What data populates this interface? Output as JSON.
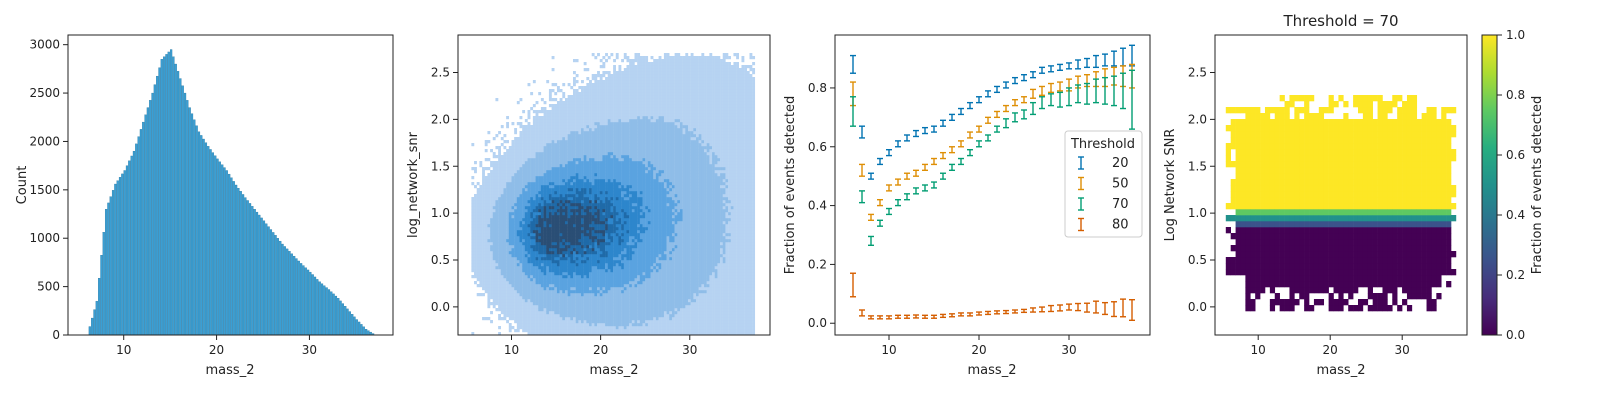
{
  "chart_data": [
    {
      "type": "bar",
      "title": "",
      "xlabel": "mass_2",
      "ylabel": "Count",
      "xlim": [
        4,
        39
      ],
      "ylim": [
        0,
        3100
      ],
      "xticks": [
        "10",
        "20",
        "30"
      ],
      "yticks": [
        "0",
        "500",
        "1000",
        "1500",
        "2000",
        "2500",
        "3000"
      ],
      "bar_color": "#3a9fd4",
      "x": [
        5.0,
        6.0,
        7.0,
        8.0,
        9.0,
        10.0,
        11.0,
        12.0,
        13.0,
        14.0,
        15.0,
        16.0,
        17.0,
        18.0,
        19.0,
        20.0,
        21.0,
        22.0,
        23.0,
        24.0,
        25.0,
        26.0,
        27.0,
        28.0,
        29.0,
        30.0,
        31.0,
        32.0,
        33.0,
        34.0,
        35.0,
        36.0,
        37.0,
        38.0
      ],
      "values": [
        0,
        0,
        350,
        1300,
        1560,
        1700,
        1900,
        2200,
        2500,
        2850,
        2950,
        2650,
        2350,
        2100,
        1950,
        1820,
        1700,
        1550,
        1420,
        1300,
        1180,
        1060,
        940,
        840,
        740,
        650,
        550,
        470,
        380,
        270,
        160,
        60,
        0,
        0
      ]
    },
    {
      "type": "heatmap",
      "title": "",
      "xlabel": "mass_2",
      "ylabel": "log_network_snr",
      "xlim": [
        4,
        39
      ],
      "ylim": [
        -0.3,
        2.9
      ],
      "xticks": [
        "10",
        "20",
        "30"
      ],
      "yticks": [
        "0.0",
        "0.5",
        "1.0",
        "1.5",
        "2.0",
        "2.5"
      ],
      "cmap": "blues",
      "peak": {
        "x": 14.5,
        "y": 0.82
      }
    },
    {
      "type": "scatter",
      "title": "",
      "xlabel": "mass_2",
      "ylabel": "Fraction of events detected",
      "xlim": [
        4,
        39
      ],
      "ylim": [
        -0.04,
        0.98
      ],
      "xticks": [
        "10",
        "20",
        "30"
      ],
      "yticks": [
        "0.0",
        "0.2",
        "0.4",
        "0.6",
        "0.8"
      ],
      "legend": {
        "title": "Threshold",
        "placement": "center-right"
      },
      "x": [
        6,
        7,
        8,
        9,
        10,
        11,
        12,
        13,
        14,
        15,
        16,
        17,
        18,
        19,
        20,
        21,
        22,
        23,
        24,
        25,
        26,
        27,
        28,
        29,
        30,
        31,
        32,
        33,
        34,
        35,
        36,
        37
      ],
      "series": [
        {
          "name": "20",
          "color": "#0173b2",
          "values": [
            0.88,
            0.65,
            0.5,
            0.55,
            0.58,
            0.61,
            0.63,
            0.645,
            0.655,
            0.66,
            0.68,
            0.7,
            0.72,
            0.74,
            0.76,
            0.78,
            0.795,
            0.81,
            0.825,
            0.835,
            0.845,
            0.86,
            0.865,
            0.87,
            0.875,
            0.88,
            0.885,
            0.89,
            0.895,
            0.9,
            0.905,
            0.91
          ],
          "err": [
            0.03,
            0.02,
            0.01,
            0.01,
            0.01,
            0.01,
            0.01,
            0.01,
            0.01,
            0.01,
            0.01,
            0.01,
            0.01,
            0.01,
            0.01,
            0.01,
            0.01,
            0.01,
            0.01,
            0.01,
            0.01,
            0.01,
            0.01,
            0.01,
            0.01,
            0.015,
            0.015,
            0.02,
            0.02,
            0.025,
            0.03,
            0.035
          ]
        },
        {
          "name": "50",
          "color": "#de8f05",
          "values": [
            0.78,
            0.52,
            0.36,
            0.41,
            0.46,
            0.48,
            0.5,
            0.51,
            0.53,
            0.55,
            0.57,
            0.59,
            0.61,
            0.64,
            0.66,
            0.69,
            0.71,
            0.73,
            0.75,
            0.76,
            0.78,
            0.79,
            0.8,
            0.805,
            0.81,
            0.82,
            0.825,
            0.83,
            0.835,
            0.84,
            0.84,
            0.84
          ],
          "err": [
            0.04,
            0.02,
            0.01,
            0.01,
            0.01,
            0.01,
            0.01,
            0.01,
            0.01,
            0.01,
            0.01,
            0.01,
            0.01,
            0.01,
            0.01,
            0.01,
            0.01,
            0.01,
            0.01,
            0.01,
            0.015,
            0.015,
            0.015,
            0.015,
            0.02,
            0.02,
            0.02,
            0.025,
            0.03,
            0.03,
            0.035,
            0.04
          ]
        },
        {
          "name": "70",
          "color": "#029e73",
          "values": [
            0.72,
            0.43,
            0.28,
            0.34,
            0.38,
            0.41,
            0.43,
            0.45,
            0.46,
            0.47,
            0.5,
            0.53,
            0.55,
            0.58,
            0.61,
            0.63,
            0.66,
            0.68,
            0.7,
            0.71,
            0.73,
            0.75,
            0.76,
            0.76,
            0.77,
            0.78,
            0.78,
            0.79,
            0.79,
            0.79,
            0.79,
            0.76
          ],
          "err": [
            0.05,
            0.02,
            0.015,
            0.01,
            0.01,
            0.01,
            0.01,
            0.01,
            0.01,
            0.01,
            0.01,
            0.01,
            0.01,
            0.01,
            0.01,
            0.01,
            0.01,
            0.015,
            0.015,
            0.015,
            0.02,
            0.02,
            0.02,
            0.025,
            0.03,
            0.03,
            0.035,
            0.04,
            0.045,
            0.05,
            0.06,
            0.1
          ]
        },
        {
          "name": "80",
          "color": "#d55e00",
          "values": [
            0.13,
            0.035,
            0.02,
            0.02,
            0.02,
            0.022,
            0.022,
            0.023,
            0.022,
            0.022,
            0.025,
            0.027,
            0.03,
            0.03,
            0.033,
            0.035,
            0.037,
            0.038,
            0.04,
            0.042,
            0.045,
            0.047,
            0.05,
            0.052,
            0.055,
            0.055,
            0.053,
            0.055,
            0.05,
            0.048,
            0.052,
            0.045
          ],
          "err": [
            0.04,
            0.01,
            0.005,
            0.005,
            0.005,
            0.005,
            0.005,
            0.005,
            0.005,
            0.005,
            0.005,
            0.005,
            0.005,
            0.005,
            0.005,
            0.005,
            0.005,
            0.005,
            0.005,
            0.005,
            0.007,
            0.008,
            0.01,
            0.01,
            0.01,
            0.012,
            0.015,
            0.02,
            0.02,
            0.025,
            0.03,
            0.035
          ]
        }
      ]
    },
    {
      "type": "heatmap",
      "title": "Threshold = 70",
      "xlabel": "mass_2",
      "ylabel": "Log Network SNR",
      "xlim": [
        4,
        39
      ],
      "ylim": [
        -0.3,
        2.9
      ],
      "xticks": [
        "10",
        "20",
        "30"
      ],
      "yticks": [
        "0.0",
        "0.5",
        "1.0",
        "1.5",
        "2.0",
        "2.5"
      ],
      "cmap": "viridis",
      "transition": {
        "low": 0.85,
        "high": 0.99
      },
      "colorbar": {
        "label": "Fraction of events detected",
        "ticks": [
          "0.0",
          "0.2",
          "0.4",
          "0.6",
          "0.8",
          "1.0"
        ],
        "range": [
          0,
          1
        ]
      }
    }
  ]
}
